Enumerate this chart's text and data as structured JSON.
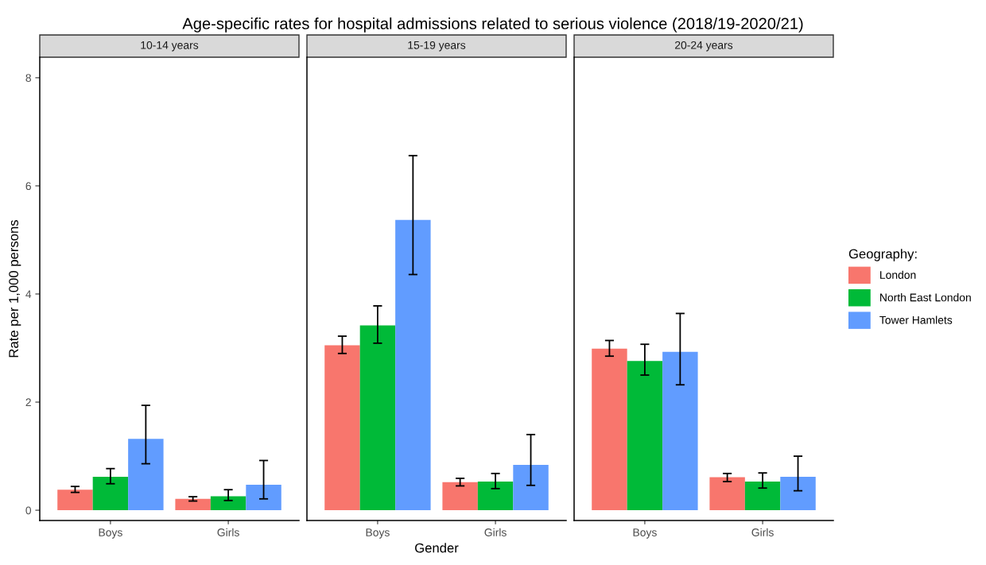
{
  "chart_data": [
    {
      "type": "bar",
      "title": "Age-specific rates for hospital admissions related to serious violence (2018/19-2020/21)",
      "subtitle": "10-14 years",
      "ylabel": "Rate per 1,000 persons",
      "categories": [
        "Boys",
        "Girls"
      ],
      "ylim": [
        -0.19,
        8.38
      ],
      "yticks": [
        0,
        2,
        4,
        6,
        8
      ],
      "grid": false,
      "series": [
        {
          "color": "#f8766d",
          "values": [
            0.38,
            0.21
          ],
          "errors": [
            [
              0.33,
              0.44
            ],
            [
              0.17,
              0.25
            ]
          ]
        },
        {
          "color": "#00ba38",
          "values": [
            0.62,
            0.26
          ],
          "errors": [
            [
              0.49,
              0.77
            ],
            [
              0.18,
              0.38
            ]
          ]
        },
        {
          "color": "#619cff",
          "values": [
            1.32,
            0.47
          ],
          "errors": [
            [
              0.86,
              1.94
            ],
            [
              0.21,
              0.92
            ]
          ]
        }
      ]
    },
    {
      "type": "bar",
      "subtitle": "15-19 years",
      "xlabel": "Gender",
      "categories": [
        "Boys",
        "Girls"
      ],
      "ylim": [
        -0.19,
        8.38
      ],
      "yticks": [
        0,
        2,
        4,
        6,
        8
      ],
      "tick_labels": "x",
      "grid": false,
      "series": [
        {
          "color": "#f8766d",
          "values": [
            3.05,
            0.52
          ],
          "errors": [
            [
              2.9,
              3.22
            ],
            [
              0.45,
              0.59
            ]
          ]
        },
        {
          "color": "#00ba38",
          "values": [
            3.42,
            0.53
          ],
          "errors": [
            [
              3.09,
              3.78
            ],
            [
              0.4,
              0.68
            ]
          ]
        },
        {
          "color": "#619cff",
          "values": [
            5.37,
            0.84
          ],
          "errors": [
            [
              4.36,
              6.56
            ],
            [
              0.46,
              1.4
            ]
          ]
        }
      ]
    },
    {
      "type": "bar",
      "subtitle": "20-24 years",
      "legend_title": "Geography:",
      "categories": [
        "Boys",
        "Girls"
      ],
      "ylim": [
        -0.19,
        8.38
      ],
      "yticks": [
        0,
        2,
        4,
        6,
        8
      ],
      "tick_labels": "x",
      "grid": false,
      "legend": "right",
      "series": [
        {
          "name": "London",
          "color": "#f8766d",
          "values": [
            2.99,
            0.61
          ],
          "errors": [
            [
              2.85,
              3.14
            ],
            [
              0.53,
              0.68
            ]
          ]
        },
        {
          "name": "North East London",
          "color": "#00ba38",
          "values": [
            2.76,
            0.53
          ],
          "errors": [
            [
              2.5,
              3.07
            ],
            [
              0.41,
              0.69
            ]
          ]
        },
        {
          "name": "Tower Hamlets",
          "color": "#619cff",
          "values": [
            2.93,
            0.62
          ],
          "errors": [
            [
              2.32,
              3.64
            ],
            [
              0.36,
              1.0
            ]
          ]
        }
      ]
    }
  ]
}
